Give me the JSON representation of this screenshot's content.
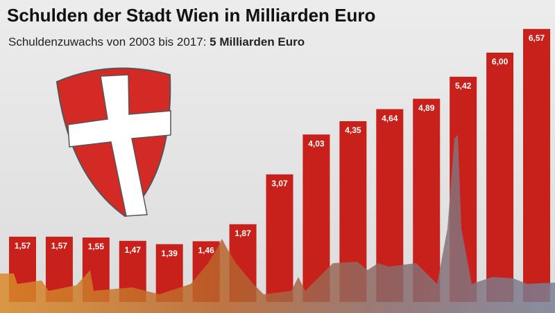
{
  "chart_data": {
    "type": "bar",
    "title": "Schulden der Stadt Wien in Milliarden Euro",
    "subtitle": "Schuldenzuwachs von 2003 bis 2017:",
    "subtitle_highlight": "5 Milliarden Euro",
    "values": [
      1.57,
      1.57,
      1.55,
      1.47,
      1.39,
      1.46,
      1.87,
      3.07,
      4.03,
      4.35,
      4.64,
      4.89,
      5.42,
      6.0,
      6.57
    ],
    "value_labels": [
      "1,57",
      "1,57",
      "1,55",
      "1,47",
      "1,39",
      "1,46",
      "1,87",
      "3,07",
      "4,03",
      "4,35",
      "4,64",
      "4,89",
      "5,42",
      "6,00",
      "6,57"
    ],
    "color": "#c8201b"
  }
}
